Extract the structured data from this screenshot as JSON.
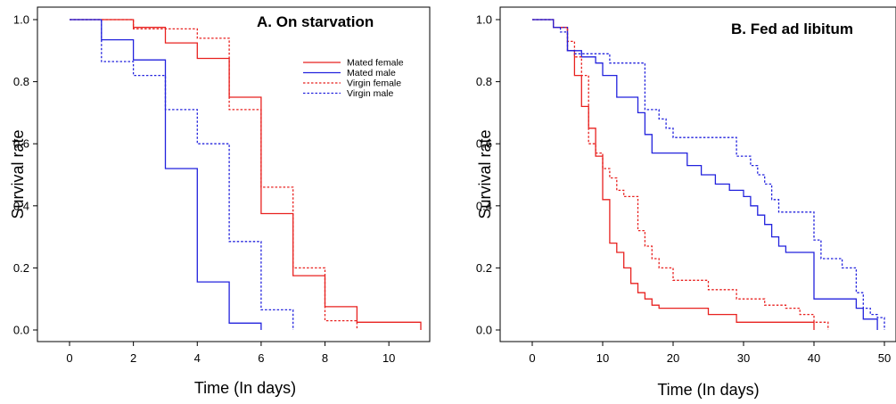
{
  "chart_data": [
    {
      "type": "line",
      "title": "A. On starvation",
      "xlabel": "Time (In days)",
      "ylabel": "Survival rate",
      "xlim": [
        0,
        11
      ],
      "ylim": [
        0,
        1
      ],
      "xticks": [
        "0",
        "2",
        "4",
        "6",
        "8",
        "10"
      ],
      "yticks": [
        "0.0",
        "0.2",
        "0.4",
        "0.6",
        "0.8",
        "1.0"
      ],
      "legend_position": "top-right",
      "grid": false,
      "step": true,
      "series": [
        {
          "name": "Mated female",
          "color": "#e8211f",
          "dash": false,
          "x": [
            0,
            2,
            3,
            4,
            5,
            6,
            7,
            8,
            9,
            11,
            11
          ],
          "y": [
            1.0,
            0.975,
            0.925,
            0.875,
            0.75,
            0.375,
            0.175,
            0.075,
            0.025,
            0.025,
            0.0
          ]
        },
        {
          "name": "Mated male",
          "color": "#2222dd",
          "dash": false,
          "x": [
            0,
            1,
            2,
            3,
            4,
            5,
            6,
            6
          ],
          "y": [
            1.0,
            0.935,
            0.87,
            0.52,
            0.155,
            0.022,
            0.022,
            0.0
          ]
        },
        {
          "name": "Virgin female",
          "color": "#e8211f",
          "dash": true,
          "x": [
            0,
            2,
            4,
            5,
            6,
            7,
            8,
            9,
            9
          ],
          "y": [
            1.0,
            0.97,
            0.94,
            0.71,
            0.46,
            0.2,
            0.03,
            0.03,
            0.0
          ]
        },
        {
          "name": "Virgin male",
          "color": "#2222dd",
          "dash": true,
          "x": [
            0,
            1,
            2,
            3,
            4,
            5,
            6,
            7,
            7
          ],
          "y": [
            1.0,
            0.865,
            0.82,
            0.71,
            0.6,
            0.285,
            0.065,
            0.065,
            0.0
          ]
        }
      ]
    },
    {
      "type": "line",
      "title": "B. Fed ad libitum",
      "xlabel": "Time (In days)",
      "ylabel": "Survival rate",
      "xlim": [
        0,
        50
      ],
      "ylim": [
        0,
        1
      ],
      "xticks": [
        "0",
        "10",
        "20",
        "30",
        "40",
        "50"
      ],
      "yticks": [
        "0.0",
        "0.2",
        "0.4",
        "0.6",
        "0.8",
        "1.0"
      ],
      "grid": false,
      "step": true,
      "series": [
        {
          "color": "#e8211f",
          "dash": false,
          "x": [
            0,
            3,
            5,
            6,
            7,
            8,
            9,
            10,
            11,
            12,
            13,
            14,
            15,
            16,
            17,
            18,
            20,
            22,
            25,
            29,
            32,
            35,
            40,
            40
          ],
          "y": [
            1.0,
            0.975,
            0.9,
            0.82,
            0.72,
            0.65,
            0.56,
            0.42,
            0.28,
            0.25,
            0.2,
            0.15,
            0.12,
            0.1,
            0.08,
            0.07,
            0.07,
            0.07,
            0.05,
            0.025,
            0.025,
            0.025,
            0.025,
            0.0
          ]
        },
        {
          "color": "#2222dd",
          "dash": false,
          "x": [
            0,
            3,
            5,
            7,
            9,
            10,
            12,
            14,
            15,
            16,
            17,
            20,
            22,
            24,
            26,
            28,
            30,
            31,
            32,
            33,
            34,
            35,
            36,
            37,
            38,
            40,
            46,
            47,
            48,
            49,
            49
          ],
          "y": [
            1.0,
            0.975,
            0.9,
            0.88,
            0.86,
            0.82,
            0.75,
            0.75,
            0.7,
            0.63,
            0.57,
            0.57,
            0.53,
            0.5,
            0.47,
            0.45,
            0.43,
            0.4,
            0.37,
            0.34,
            0.3,
            0.27,
            0.25,
            0.25,
            0.25,
            0.1,
            0.07,
            0.035,
            0.035,
            0.0,
            0.0
          ]
        },
        {
          "color": "#e8211f",
          "dash": true,
          "x": [
            0,
            3,
            5,
            6,
            7,
            8,
            9,
            10,
            11,
            12,
            13,
            15,
            16,
            17,
            18,
            20,
            22,
            25,
            29,
            33,
            36,
            38,
            40,
            42,
            42
          ],
          "y": [
            1.0,
            0.975,
            0.93,
            0.88,
            0.82,
            0.6,
            0.57,
            0.52,
            0.49,
            0.45,
            0.43,
            0.32,
            0.27,
            0.23,
            0.2,
            0.16,
            0.16,
            0.13,
            0.1,
            0.08,
            0.07,
            0.05,
            0.025,
            0.025,
            0.0
          ]
        },
        {
          "color": "#2222dd",
          "dash": true,
          "x": [
            0,
            3,
            4,
            5,
            6,
            8,
            11,
            12,
            15,
            16,
            18,
            19,
            20,
            29,
            31,
            32,
            33,
            34,
            35,
            38,
            40,
            41,
            44,
            46,
            47,
            48,
            49,
            50,
            50
          ],
          "y": [
            1.0,
            0.975,
            0.96,
            0.9,
            0.89,
            0.89,
            0.86,
            0.86,
            0.86,
            0.71,
            0.68,
            0.65,
            0.62,
            0.56,
            0.53,
            0.5,
            0.47,
            0.42,
            0.38,
            0.38,
            0.29,
            0.23,
            0.2,
            0.12,
            0.07,
            0.05,
            0.04,
            0.02,
            0.0
          ]
        }
      ]
    }
  ]
}
